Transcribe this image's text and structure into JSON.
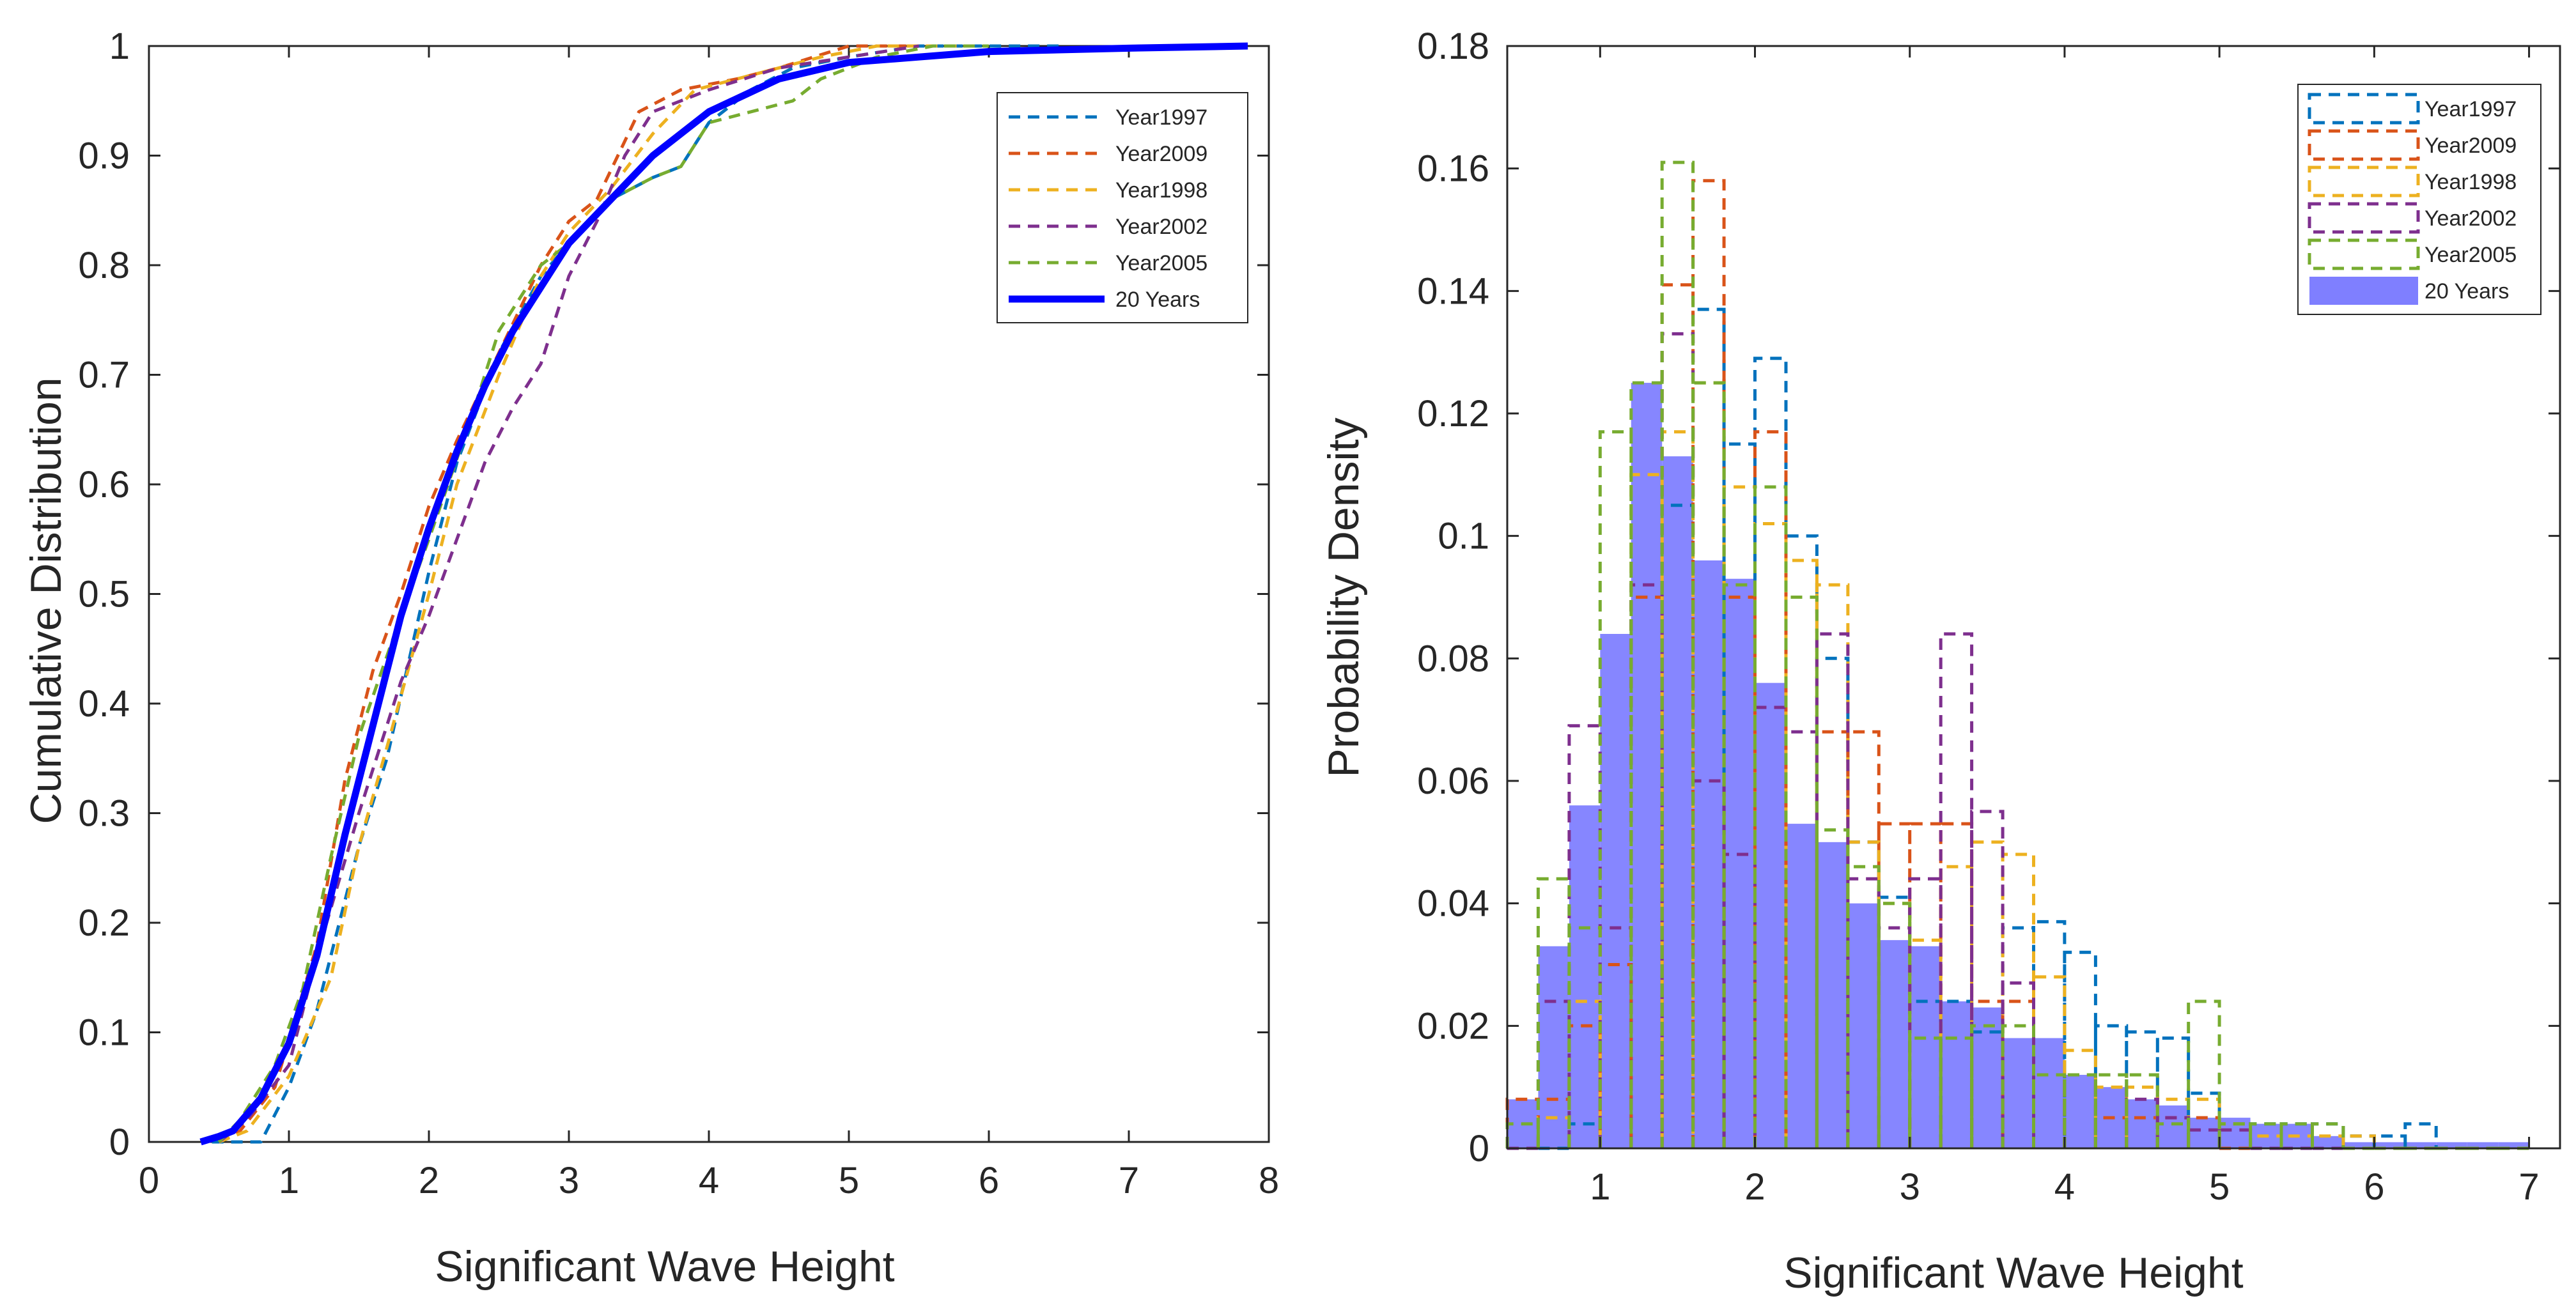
{
  "figure": {
    "left_panel": {
      "xlabel": "Significant Wave Height",
      "ylabel": "Cumulative Distribution"
    },
    "right_panel": {
      "xlabel": "Significant Wave Height",
      "ylabel": "Probability Density"
    }
  },
  "chart_data": [
    {
      "type": "line",
      "xlabel": "Significant Wave Height",
      "ylabel": "Cumulative Distribution",
      "xlim": [
        0,
        8
      ],
      "ylim": [
        0,
        1
      ],
      "xticks": [
        "0",
        "1",
        "2",
        "3",
        "4",
        "5",
        "6",
        "7",
        "8"
      ],
      "yticks": [
        "0",
        "0.1",
        "0.2",
        "0.3",
        "0.4",
        "0.5",
        "0.6",
        "0.7",
        "0.8",
        "0.9",
        "1"
      ],
      "grid": false,
      "legend_position": "top-right",
      "series": [
        {
          "name": "Year1997",
          "color": "#0072BD",
          "style": "dashed",
          "points": [
            [
              0.45,
              0
            ],
            [
              0.8,
              0
            ],
            [
              1.0,
              0.05
            ],
            [
              1.2,
              0.12
            ],
            [
              1.5,
              0.27
            ],
            [
              1.7,
              0.35
            ],
            [
              2.0,
              0.52
            ],
            [
              2.2,
              0.62
            ],
            [
              2.5,
              0.72
            ],
            [
              2.8,
              0.79
            ],
            [
              3.0,
              0.82
            ],
            [
              3.3,
              0.86
            ],
            [
              3.6,
              0.88
            ],
            [
              3.8,
              0.89
            ],
            [
              4.0,
              0.93
            ],
            [
              4.3,
              0.96
            ],
            [
              4.6,
              0.98
            ],
            [
              5.0,
              0.99
            ],
            [
              5.5,
              1.0
            ],
            [
              6.5,
              1.0
            ]
          ]
        },
        {
          "name": "Year2009",
          "color": "#D95319",
          "style": "dashed",
          "points": [
            [
              0.5,
              0
            ],
            [
              0.65,
              0.01
            ],
            [
              0.9,
              0.05
            ],
            [
              1.2,
              0.18
            ],
            [
              1.4,
              0.33
            ],
            [
              1.6,
              0.43
            ],
            [
              1.8,
              0.5
            ],
            [
              2.0,
              0.58
            ],
            [
              2.2,
              0.64
            ],
            [
              2.5,
              0.72
            ],
            [
              2.8,
              0.8
            ],
            [
              3.0,
              0.84
            ],
            [
              3.2,
              0.86
            ],
            [
              3.5,
              0.94
            ],
            [
              3.8,
              0.96
            ],
            [
              4.2,
              0.97
            ],
            [
              4.5,
              0.98
            ],
            [
              5.0,
              1.0
            ],
            [
              5.5,
              1.0
            ]
          ]
        },
        {
          "name": "Year1998",
          "color": "#EDB120",
          "style": "dashed",
          "points": [
            [
              0.5,
              0
            ],
            [
              0.7,
              0.01
            ],
            [
              1.0,
              0.06
            ],
            [
              1.3,
              0.15
            ],
            [
              1.5,
              0.27
            ],
            [
              1.7,
              0.36
            ],
            [
              2.0,
              0.5
            ],
            [
              2.2,
              0.6
            ],
            [
              2.5,
              0.7
            ],
            [
              2.8,
              0.79
            ],
            [
              3.0,
              0.83
            ],
            [
              3.3,
              0.87
            ],
            [
              3.6,
              0.92
            ],
            [
              3.9,
              0.96
            ],
            [
              4.2,
              0.97
            ],
            [
              4.5,
              0.98
            ],
            [
              4.8,
              0.99
            ],
            [
              5.2,
              1.0
            ],
            [
              5.8,
              1.0
            ]
          ]
        },
        {
          "name": "Year2002",
          "color": "#7E2F8E",
          "style": "dashed",
          "points": [
            [
              0.5,
              0
            ],
            [
              0.7,
              0.02
            ],
            [
              1.0,
              0.07
            ],
            [
              1.2,
              0.17
            ],
            [
              1.5,
              0.3
            ],
            [
              1.8,
              0.42
            ],
            [
              2.0,
              0.48
            ],
            [
              2.2,
              0.55
            ],
            [
              2.4,
              0.62
            ],
            [
              2.6,
              0.67
            ],
            [
              2.8,
              0.71
            ],
            [
              3.0,
              0.79
            ],
            [
              3.2,
              0.84
            ],
            [
              3.4,
              0.9
            ],
            [
              3.6,
              0.94
            ],
            [
              3.8,
              0.95
            ],
            [
              4.0,
              0.96
            ],
            [
              4.5,
              0.98
            ],
            [
              5.0,
              0.99
            ],
            [
              5.5,
              1.0
            ]
          ]
        },
        {
          "name": "Year2005",
          "color": "#77AC30",
          "style": "dashed",
          "points": [
            [
              0.5,
              0
            ],
            [
              0.65,
              0.02
            ],
            [
              0.9,
              0.07
            ],
            [
              1.1,
              0.14
            ],
            [
              1.3,
              0.26
            ],
            [
              1.5,
              0.37
            ],
            [
              1.8,
              0.48
            ],
            [
              2.0,
              0.55
            ],
            [
              2.3,
              0.66
            ],
            [
              2.5,
              0.74
            ],
            [
              2.8,
              0.8
            ],
            [
              3.0,
              0.82
            ],
            [
              3.3,
              0.86
            ],
            [
              3.6,
              0.88
            ],
            [
              3.8,
              0.89
            ],
            [
              4.0,
              0.93
            ],
            [
              4.3,
              0.94
            ],
            [
              4.6,
              0.95
            ],
            [
              4.8,
              0.97
            ],
            [
              5.2,
              0.99
            ],
            [
              5.6,
              1.0
            ],
            [
              6.0,
              1.0
            ]
          ]
        },
        {
          "name": "20 Years",
          "color": "#0000FF",
          "style": "solid",
          "points": [
            [
              0.37,
              0
            ],
            [
              0.5,
              0.005
            ],
            [
              0.6,
              0.01
            ],
            [
              0.8,
              0.04
            ],
            [
              1.0,
              0.09
            ],
            [
              1.2,
              0.17
            ],
            [
              1.4,
              0.28
            ],
            [
              1.6,
              0.38
            ],
            [
              1.8,
              0.48
            ],
            [
              2.0,
              0.56
            ],
            [
              2.2,
              0.63
            ],
            [
              2.4,
              0.69
            ],
            [
              2.6,
              0.74
            ],
            [
              2.8,
              0.78
            ],
            [
              3.0,
              0.82
            ],
            [
              3.3,
              0.86
            ],
            [
              3.6,
              0.9
            ],
            [
              4.0,
              0.94
            ],
            [
              4.5,
              0.97
            ],
            [
              5.0,
              0.985
            ],
            [
              5.5,
              0.99
            ],
            [
              6.0,
              0.995
            ],
            [
              7.0,
              0.998
            ],
            [
              7.85,
              1.0
            ]
          ]
        }
      ]
    },
    {
      "type": "bar",
      "xlabel": "Significant Wave Height",
      "ylabel": "Probability Density",
      "xlim": [
        0.4,
        7.2
      ],
      "ylim": [
        0,
        0.18
      ],
      "xticks": [
        "1",
        "2",
        "3",
        "4",
        "5",
        "6",
        "7"
      ],
      "yticks": [
        "0",
        "0.02",
        "0.04",
        "0.06",
        "0.08",
        "0.1",
        "0.12",
        "0.14",
        "0.16",
        "0.18"
      ],
      "grid": false,
      "legend_position": "top-right",
      "bin_edges": [
        0.4,
        0.6,
        0.8,
        1.0,
        1.2,
        1.4,
        1.6,
        1.8,
        2.0,
        2.2,
        2.4,
        2.6,
        2.8,
        3.0,
        3.2,
        3.4,
        3.6,
        3.8,
        4.0,
        4.2,
        4.4,
        4.6,
        4.8,
        5.0,
        5.2,
        5.4,
        5.6,
        5.8,
        6.0,
        6.2,
        6.4,
        6.6,
        6.8,
        7.0
      ],
      "series": [
        {
          "name": "Year1997",
          "color": "#0072BD",
          "style": "stairs",
          "values": [
            0,
            0,
            0.004,
            0.03,
            0.09,
            0.105,
            0.137,
            0.115,
            0.129,
            0.1,
            0.08,
            0.05,
            0.041,
            0.024,
            0.024,
            0.019,
            0.036,
            0.037,
            0.032,
            0.02,
            0.019,
            0.018,
            0.009,
            0.004,
            0.004,
            0.004,
            0.004,
            0.002,
            0.002,
            0.004,
            0,
            0,
            0,
            0
          ]
        },
        {
          "name": "Year2009",
          "color": "#D95319",
          "style": "stairs",
          "values": [
            0.008,
            0.008,
            0.02,
            0.03,
            0.09,
            0.141,
            0.158,
            0.09,
            0.117,
            0.09,
            0.068,
            0.068,
            0.053,
            0.053,
            0.053,
            0.024,
            0.024,
            0.012,
            0.012,
            0.005,
            0.005,
            0.005,
            0.005,
            0,
            0,
            0,
            0,
            0,
            0,
            0,
            0,
            0,
            0,
            0
          ]
        },
        {
          "name": "Year1998",
          "color": "#EDB120",
          "style": "stairs",
          "values": [
            0,
            0.005,
            0.024,
            0.036,
            0.11,
            0.117,
            0.125,
            0.108,
            0.102,
            0.096,
            0.092,
            0.05,
            0.04,
            0.034,
            0.046,
            0.05,
            0.048,
            0.028,
            0.016,
            0.01,
            0.01,
            0.008,
            0.008,
            0.004,
            0.002,
            0.002,
            0.002,
            0.002,
            0,
            0,
            0,
            0,
            0,
            0
          ]
        },
        {
          "name": "Year2002",
          "color": "#7E2F8E",
          "style": "stairs",
          "values": [
            0,
            0.024,
            0.069,
            0.036,
            0.092,
            0.133,
            0.06,
            0.048,
            0.072,
            0.068,
            0.084,
            0.044,
            0.036,
            0.044,
            0.084,
            0.055,
            0.027,
            0.012,
            0.012,
            0.012,
            0.008,
            0.005,
            0.003,
            0.003,
            0,
            0,
            0,
            0,
            0,
            0,
            0,
            0,
            0,
            0
          ]
        },
        {
          "name": "Year2005",
          "color": "#77AC30",
          "style": "stairs",
          "values": [
            0.004,
            0.044,
            0.036,
            0.117,
            0.125,
            0.161,
            0.125,
            0.092,
            0.108,
            0.09,
            0.052,
            0.046,
            0.04,
            0.018,
            0.018,
            0.02,
            0.02,
            0.012,
            0.012,
            0.012,
            0.012,
            0.004,
            0.024,
            0.004,
            0.004,
            0.004,
            0.004,
            0,
            0,
            0,
            0,
            0,
            0,
            0
          ]
        },
        {
          "name": "20 Years",
          "color": "#7F7FFF",
          "style": "filled",
          "values": [
            0.008,
            0.033,
            0.056,
            0.084,
            0.125,
            0.113,
            0.096,
            0.093,
            0.076,
            0.053,
            0.05,
            0.04,
            0.034,
            0.033,
            0.024,
            0.023,
            0.018,
            0.018,
            0.012,
            0.01,
            0.008,
            0.007,
            0.005,
            0.005,
            0.004,
            0.004,
            0.002,
            0.001,
            0.001,
            0.001,
            0.001,
            0.001,
            0.001
          ]
        }
      ]
    }
  ]
}
